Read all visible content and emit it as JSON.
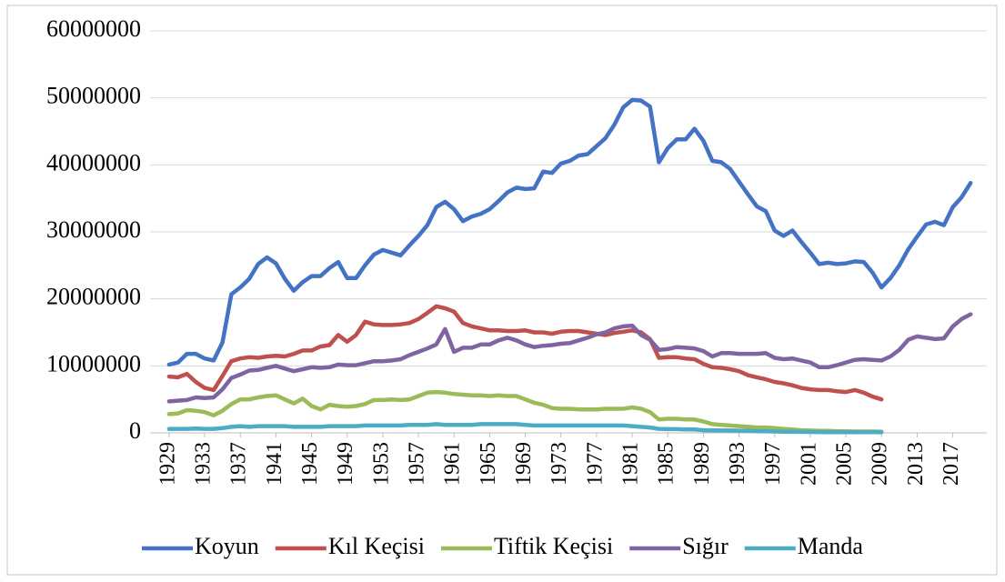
{
  "chart_data": {
    "type": "line",
    "x": [
      1929,
      1930,
      1931,
      1932,
      1933,
      1934,
      1935,
      1936,
      1937,
      1938,
      1939,
      1940,
      1941,
      1942,
      1943,
      1944,
      1945,
      1946,
      1947,
      1948,
      1949,
      1950,
      1951,
      1952,
      1953,
      1954,
      1955,
      1956,
      1957,
      1958,
      1959,
      1960,
      1961,
      1962,
      1963,
      1964,
      1965,
      1966,
      1967,
      1968,
      1969,
      1970,
      1971,
      1972,
      1973,
      1974,
      1975,
      1976,
      1977,
      1978,
      1979,
      1980,
      1981,
      1982,
      1983,
      1984,
      1985,
      1986,
      1987,
      1988,
      1989,
      1990,
      1991,
      1992,
      1993,
      1994,
      1995,
      1996,
      1997,
      1998,
      1999,
      2000,
      2001,
      2002,
      2003,
      2004,
      2005,
      2006,
      2007,
      2008,
      2009,
      2010,
      2011,
      2012,
      2013,
      2014,
      2015,
      2016,
      2017,
      2018,
      2019
    ],
    "xlim": [
      1928.5,
      2019.8
    ],
    "xticks": [
      1929,
      1933,
      1937,
      1941,
      1945,
      1949,
      1953,
      1957,
      1961,
      1965,
      1969,
      1973,
      1977,
      1981,
      1985,
      1989,
      1993,
      1997,
      2001,
      2005,
      2009,
      2013,
      2017
    ],
    "ylim": [
      0,
      60000000
    ],
    "yticks": [
      0,
      10000000,
      20000000,
      30000000,
      40000000,
      50000000,
      60000000
    ],
    "grid": true,
    "legend": "bottom",
    "series": [
      {
        "name": "Koyun",
        "color": "#4472c4",
        "values": [
          10200000,
          10500000,
          11800000,
          11800000,
          11100000,
          10800000,
          13500000,
          20700000,
          21700000,
          23000000,
          25200000,
          26200000,
          25300000,
          23000000,
          21200000,
          22500000,
          23400000,
          23400000,
          24600000,
          25500000,
          23100000,
          23100000,
          25000000,
          26600000,
          27300000,
          26900000,
          26500000,
          28000000,
          29400000,
          31000000,
          33700000,
          34500000,
          33400000,
          31600000,
          32300000,
          32700000,
          33400000,
          34600000,
          35900000,
          36600000,
          36400000,
          36500000,
          39000000,
          38800000,
          40200000,
          40600000,
          41400000,
          41600000,
          42800000,
          44000000,
          46000000,
          48600000,
          49700000,
          49600000,
          48700000,
          40400000,
          42500000,
          43800000,
          43800000,
          45400000,
          43600000,
          40600000,
          40400000,
          39400000,
          37500000,
          35600000,
          33800000,
          33100000,
          30200000,
          29400000,
          30200000,
          28500000,
          26900000,
          25200000,
          25400000,
          25200000,
          25300000,
          25600000,
          25500000,
          23900000,
          21700000,
          23100000,
          25000000,
          27400000,
          29300000,
          31100000,
          31500000,
          31000000,
          33700000,
          35200000,
          37300000
        ]
      },
      {
        "name": "Kıl Keçisi",
        "color": "#c0504d",
        "values": [
          8400000,
          8300000,
          8800000,
          7600000,
          6700000,
          6400000,
          8500000,
          10700000,
          11100000,
          11300000,
          11200000,
          11400000,
          11500000,
          11400000,
          11800000,
          12300000,
          12300000,
          12900000,
          13100000,
          14600000,
          13600000,
          14600000,
          16600000,
          16200000,
          16100000,
          16100000,
          16200000,
          16400000,
          17000000,
          17900000,
          18900000,
          18600000,
          18100000,
          16400000,
          15900000,
          15600000,
          15300000,
          15300000,
          15200000,
          15200000,
          15300000,
          15000000,
          15000000,
          14800000,
          15100000,
          15200000,
          15200000,
          15000000,
          14800000,
          14600000,
          14900000,
          15100000,
          15300000,
          15000000,
          14000000,
          11200000,
          11300000,
          11300000,
          11100000,
          11000000,
          10300000,
          9800000,
          9700000,
          9500000,
          9200000,
          8600000,
          8300000,
          8000000,
          7600000,
          7400000,
          7100000,
          6700000,
          6500000,
          6400000,
          6400000,
          6200000,
          6100000,
          6400000,
          6000000,
          5400000,
          5000000,
          null,
          null,
          null,
          null,
          null,
          null,
          null,
          null,
          null,
          null
        ]
      },
      {
        "name": "Tiftik Keçisi",
        "color": "#9bbb59",
        "values": [
          2800000,
          2900000,
          3400000,
          3300000,
          3100000,
          2600000,
          3300000,
          4300000,
          5000000,
          5000000,
          5300000,
          5500000,
          5600000,
          5000000,
          4400000,
          5100000,
          4000000,
          3500000,
          4200000,
          4000000,
          3900000,
          4000000,
          4300000,
          4900000,
          4900000,
          5000000,
          4900000,
          5000000,
          5500000,
          6000000,
          6100000,
          6000000,
          5800000,
          5700000,
          5600000,
          5600000,
          5500000,
          5600000,
          5500000,
          5500000,
          5000000,
          4500000,
          4200000,
          3700000,
          3600000,
          3600000,
          3500000,
          3500000,
          3500000,
          3600000,
          3600000,
          3600000,
          3800000,
          3600000,
          3100000,
          2000000,
          2100000,
          2100000,
          2000000,
          2000000,
          1700000,
          1300000,
          1200000,
          1100000,
          1000000,
          900000,
          800000,
          800000,
          700000,
          600000,
          500000,
          400000,
          350000,
          300000,
          300000,
          250000,
          250000,
          200000,
          200000,
          200000,
          180000,
          null,
          null,
          null,
          null,
          null,
          null,
          null,
          null,
          null,
          null
        ]
      },
      {
        "name": "Sığır",
        "color": "#8064a2",
        "values": [
          4700000,
          4800000,
          4900000,
          5300000,
          5200000,
          5300000,
          6500000,
          8200000,
          8700000,
          9300000,
          9400000,
          9700000,
          10000000,
          9600000,
          9200000,
          9500000,
          9800000,
          9700000,
          9800000,
          10200000,
          10100000,
          10100000,
          10400000,
          10700000,
          10700000,
          10800000,
          11000000,
          11600000,
          12100000,
          12600000,
          13200000,
          15500000,
          12100000,
          12700000,
          12700000,
          13200000,
          13200000,
          13800000,
          14200000,
          13800000,
          13200000,
          12800000,
          13000000,
          13100000,
          13300000,
          13400000,
          13800000,
          14200000,
          14700000,
          15000000,
          15600000,
          15900000,
          16000000,
          14600000,
          13900000,
          12400000,
          12500000,
          12800000,
          12700000,
          12600000,
          12200000,
          11400000,
          11900000,
          11900000,
          11800000,
          11800000,
          11800000,
          11900000,
          11200000,
          11000000,
          11100000,
          10800000,
          10500000,
          9800000,
          9800000,
          10100000,
          10500000,
          10900000,
          11000000,
          10900000,
          10800000,
          11400000,
          12400000,
          13900000,
          14400000,
          14200000,
          14000000,
          14100000,
          15900000,
          17000000,
          17700000
        ]
      },
      {
        "name": "Manda",
        "color": "#4bacc6",
        "values": [
          600000,
          600000,
          600000,
          650000,
          600000,
          600000,
          700000,
          900000,
          1000000,
          900000,
          1000000,
          1000000,
          1000000,
          1000000,
          900000,
          900000,
          900000,
          900000,
          1000000,
          1000000,
          1000000,
          1000000,
          1100000,
          1100000,
          1100000,
          1100000,
          1100000,
          1200000,
          1200000,
          1200000,
          1300000,
          1200000,
          1200000,
          1200000,
          1200000,
          1300000,
          1300000,
          1300000,
          1300000,
          1300000,
          1200000,
          1100000,
          1100000,
          1100000,
          1100000,
          1100000,
          1100000,
          1100000,
          1100000,
          1100000,
          1100000,
          1100000,
          1000000,
          900000,
          800000,
          600000,
          550000,
          550000,
          500000,
          500000,
          400000,
          370000,
          350000,
          350000,
          330000,
          300000,
          260000,
          230000,
          200000,
          180000,
          170000,
          150000,
          140000,
          120000,
          110000,
          100000,
          100000,
          100000,
          90000,
          90000,
          90000,
          null,
          null,
          null,
          null,
          null,
          null,
          null,
          null,
          null,
          null
        ]
      }
    ]
  }
}
